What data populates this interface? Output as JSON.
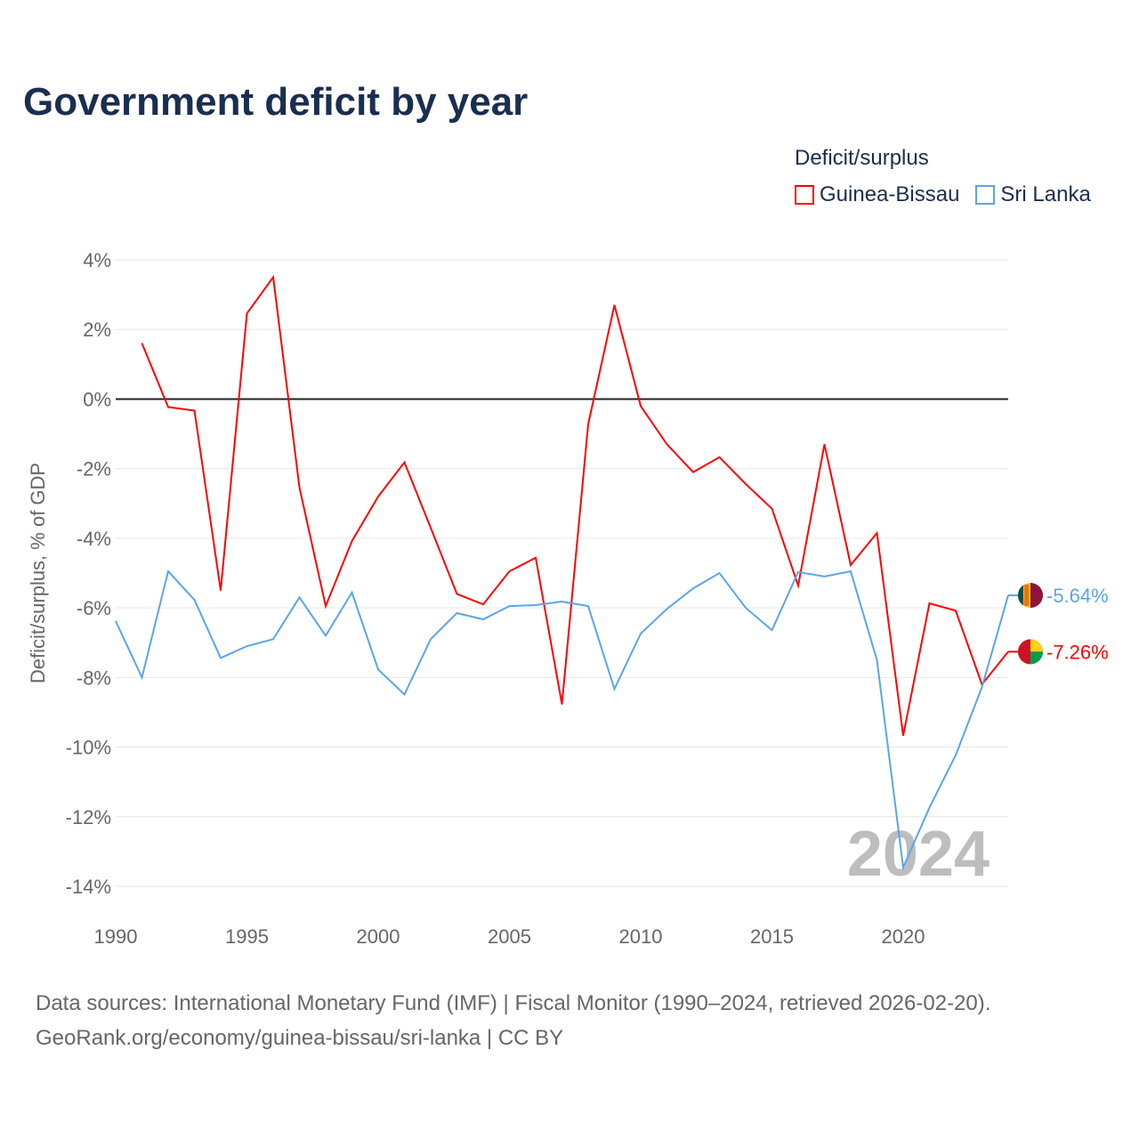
{
  "title": "Government deficit by year",
  "legend": {
    "title": "Deficit/surplus",
    "items": [
      {
        "name": "Guinea-Bissau",
        "color": "#ff0000"
      },
      {
        "name": "Sri Lanka",
        "color": "#5aa5ea"
      }
    ]
  },
  "source": {
    "line1": "Data sources: International Monetary Fund (IMF) | Fiscal Monitor (1990–2024, retrieved 2026-02-20).",
    "line2": "GeoRank.org/economy/guinea-bissau/sri-lanka | CC BY"
  },
  "chart_data": {
    "type": "line",
    "title": "Government deficit by year",
    "ylabel": "Deficit/surplus, % of GDP",
    "xlabel": "",
    "xlim": [
      1990,
      2024
    ],
    "ylim": [
      -14,
      4
    ],
    "xticks": [
      1990,
      1995,
      2000,
      2005,
      2010,
      2015,
      2020
    ],
    "yticks": [
      4,
      2,
      0,
      -2,
      -4,
      -6,
      -8,
      -10,
      -12,
      -14
    ],
    "ytick_labels": [
      "4%",
      "2%",
      "0%",
      "-2%",
      "-4%",
      "-6%",
      "-8%",
      "-10%",
      "-12%",
      "-14%"
    ],
    "watermark_year": "2024",
    "series": [
      {
        "name": "Guinea-Bissau",
        "color": "#ff0000",
        "end_label": "-7.26%",
        "x": [
          1991,
          1992,
          1993,
          1994,
          1995,
          1996,
          1997,
          1998,
          1999,
          2000,
          2001,
          2002,
          2003,
          2004,
          2005,
          2006,
          2007,
          2008,
          2009,
          2010,
          2011,
          2012,
          2013,
          2014,
          2015,
          2016,
          2017,
          2018,
          2019,
          2020,
          2021,
          2022,
          2023,
          2024
        ],
        "values": [
          1.6,
          -0.23,
          -0.33,
          -5.5,
          2.46,
          3.5,
          -2.54,
          -5.95,
          -4.08,
          -2.8,
          -1.82,
          -3.7,
          -5.6,
          -5.9,
          -4.95,
          -4.56,
          -8.77,
          -0.72,
          2.7,
          -0.2,
          -1.3,
          -2.1,
          -1.67,
          -2.44,
          -3.15,
          -5.36,
          -1.3,
          -4.77,
          -3.85,
          -9.67,
          -5.87,
          -6.08,
          -8.2,
          -7.26
        ]
      },
      {
        "name": "Sri Lanka",
        "color": "#5aa5ea",
        "end_label": "-5.64%",
        "x": [
          1990,
          1991,
          1992,
          1993,
          1994,
          1995,
          1996,
          1997,
          1998,
          1999,
          2000,
          2001,
          2002,
          2003,
          2004,
          2005,
          2006,
          2007,
          2008,
          2009,
          2010,
          2011,
          2012,
          2013,
          2014,
          2015,
          2016,
          2017,
          2018,
          2019,
          2020,
          2021,
          2022,
          2023,
          2024
        ],
        "values": [
          -6.38,
          -8.0,
          -4.95,
          -5.77,
          -7.44,
          -7.1,
          -6.9,
          -5.7,
          -6.8,
          -5.56,
          -7.77,
          -8.49,
          -6.9,
          -6.15,
          -6.33,
          -5.95,
          -5.92,
          -5.82,
          -5.95,
          -8.33,
          -6.74,
          -6.03,
          -5.44,
          -5.0,
          -6.0,
          -6.64,
          -4.97,
          -5.1,
          -4.95,
          -7.5,
          -13.46,
          -11.74,
          -10.23,
          -8.28,
          -5.64
        ]
      }
    ]
  }
}
